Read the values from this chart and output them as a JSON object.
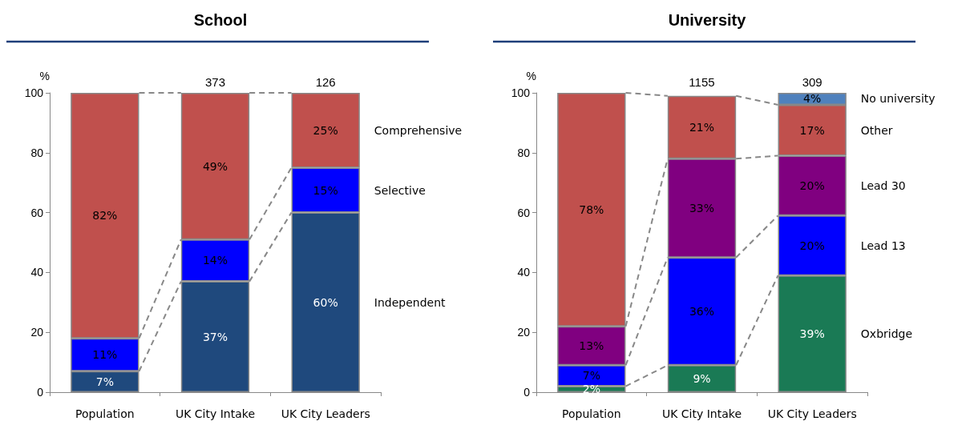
{
  "chart_data": [
    {
      "type": "bar",
      "title": "School",
      "ylabel": "%",
      "categories": [
        "Population",
        "UK City Intake",
        "UK City Leaders"
      ],
      "stacked": true,
      "annotations": [
        {
          "text": "373",
          "x": "UK City Intake",
          "y": 100
        },
        {
          "text": "126",
          "x": "UK City Leaders",
          "y": 100
        }
      ],
      "ylim": [
        0,
        100
      ],
      "yticks": [
        0,
        20,
        40,
        60,
        80,
        100
      ],
      "series": [
        {
          "name": "Independent",
          "color": "#1f497d",
          "values": [
            7,
            37,
            60
          ],
          "value_labels": [
            "7%",
            "37%",
            "60%"
          ]
        },
        {
          "name": "Selective",
          "color": "#0000ff",
          "values": [
            11,
            14,
            15
          ],
          "value_labels": [
            "11%",
            "14%",
            "15%"
          ]
        },
        {
          "name": "Comprehensive",
          "color": "#c0504d",
          "values": [
            82,
            49,
            25
          ],
          "value_labels": [
            "82%",
            "49%",
            "25%"
          ]
        }
      ]
    },
    {
      "type": "bar",
      "title": "University",
      "ylabel": "%",
      "categories": [
        "Population",
        "UK City Intake",
        "UK City Leaders"
      ],
      "stacked": true,
      "annotations": [
        {
          "text": "1155",
          "x": "UK City Intake",
          "y": 100
        },
        {
          "text": "309",
          "x": "UK City Leaders",
          "y": 100
        }
      ],
      "ylim": [
        0,
        100
      ],
      "yticks": [
        0,
        20,
        40,
        60,
        80,
        100
      ],
      "series": [
        {
          "name": "Oxbridge",
          "color": "#1a7a55",
          "values": [
            2,
            9,
            39
          ],
          "value_labels": [
            "2%",
            "9%",
            "39%"
          ]
        },
        {
          "name": "Lead 13",
          "color": "#0000ff",
          "values": [
            7,
            36,
            20
          ],
          "value_labels": [
            "7%",
            "36%",
            "20%"
          ]
        },
        {
          "name": "Lead 30",
          "color": "#800080",
          "values": [
            13,
            33,
            20
          ],
          "value_labels": [
            "13%",
            "33%",
            "20%"
          ]
        },
        {
          "name": "Other",
          "color": "#c0504d",
          "values": [
            78,
            21,
            17
          ],
          "value_labels": [
            "78%",
            "21%",
            "17%"
          ]
        },
        {
          "name": "No university",
          "color": "#4f81bd",
          "values": [
            null,
            null,
            4
          ],
          "value_labels": [
            null,
            null,
            "4%"
          ]
        }
      ]
    }
  ]
}
